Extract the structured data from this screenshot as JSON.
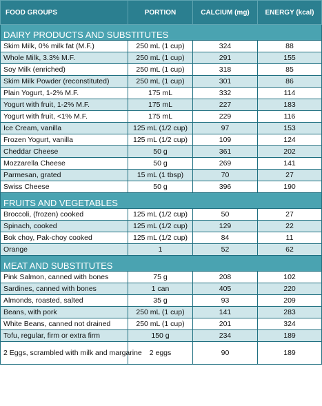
{
  "headers": [
    "FOOD GROUPS",
    "PORTION",
    "CALCIUM (mg)",
    "ENERGY (kcal)"
  ],
  "sections": [
    {
      "title": "DAIRY PRODUCTS AND SUBSTITUTES",
      "rows": [
        {
          "food": "Skim Milk, 0% milk fat (M.F.)",
          "portion": "250 mL (1 cup)",
          "calcium": "324",
          "energy": "88"
        },
        {
          "food": "Whole Milk, 3.3% M.F.",
          "portion": "250 mL (1 cup)",
          "calcium": "291",
          "energy": "155"
        },
        {
          "food": "Soy Milk (enriched)",
          "portion": "250 mL (1 cup)",
          "calcium": "318",
          "energy": "85"
        },
        {
          "food": "Skim Milk Powder (reconstituted)",
          "portion": "250 mL (1 cup)",
          "calcium": "301",
          "energy": "86"
        },
        {
          "food": "Plain Yogurt, 1-2% M.F.",
          "portion": "175 mL",
          "calcium": "332",
          "energy": "114"
        },
        {
          "food": "Yogurt with fruit, 1-2% M.F.",
          "portion": "175 mL",
          "calcium": "227",
          "energy": "183"
        },
        {
          "food": "Yogurt with fruit, <1% M.F.",
          "portion": "175 mL",
          "calcium": "229",
          "energy": "116"
        },
        {
          "food": "Ice Cream, vanilla",
          "portion": "125 mL (1/2 cup)",
          "calcium": "97",
          "energy": "153"
        },
        {
          "food": "Frozen Yogurt, vanilla",
          "portion": "125 mL (1/2 cup)",
          "calcium": "109",
          "energy": "124"
        },
        {
          "food": "Cheddar Cheese",
          "portion": "50 g",
          "calcium": "361",
          "energy": "202"
        },
        {
          "food": "Mozzarella Cheese",
          "portion": "50 g",
          "calcium": "269",
          "energy": "141"
        },
        {
          "food": "Parmesan, grated",
          "portion": "15 mL  (1 tbsp)",
          "calcium": "70",
          "energy": "27"
        },
        {
          "food": "Swiss Cheese",
          "portion": "50 g",
          "calcium": "396",
          "energy": "190"
        }
      ]
    },
    {
      "title": "FRUITS AND VEGETABLES",
      "rows": [
        {
          "food": "Broccoli, (frozen) cooked",
          "portion": "125 mL (1/2 cup)",
          "calcium": "50",
          "energy": "27"
        },
        {
          "food": "Spinach, cooked",
          "portion": "125 mL (1/2 cup)",
          "calcium": "129",
          "energy": "22"
        },
        {
          "food": "Bok choy, Pak-choy cooked",
          "portion": "125 mL (1/2 cup)",
          "calcium": "84",
          "energy": "11"
        },
        {
          "food": "Orange",
          "portion": "1",
          "calcium": "52",
          "energy": "62"
        }
      ]
    },
    {
      "title": "MEAT AND SUBSTITUTES",
      "rows": [
        {
          "food": "Pink Salmon, canned with bones",
          "portion": "75 g",
          "calcium": "208",
          "energy": "102"
        },
        {
          "food": "Sardines, canned with bones",
          "portion": "1 can",
          "calcium": "405",
          "energy": "220"
        },
        {
          "food": "Almonds, roasted, salted",
          "portion": "35 g",
          "calcium": "93",
          "energy": "209"
        },
        {
          "food": "Beans, with pork",
          "portion": "250 mL  (1 cup)",
          "calcium": "141",
          "energy": "283"
        },
        {
          "food": "White Beans, canned not drained",
          "portion": "250 mL  (1 cup)",
          "calcium": "201",
          "energy": "324"
        },
        {
          "food": "Tofu, regular, firm or extra firm",
          "portion": "150 g",
          "calcium": "234",
          "energy": "189"
        },
        {
          "food": "2 Eggs, scrambled with milk and margarine",
          "portion": "2 eggs",
          "calcium": "90",
          "energy": "189"
        }
      ]
    }
  ]
}
